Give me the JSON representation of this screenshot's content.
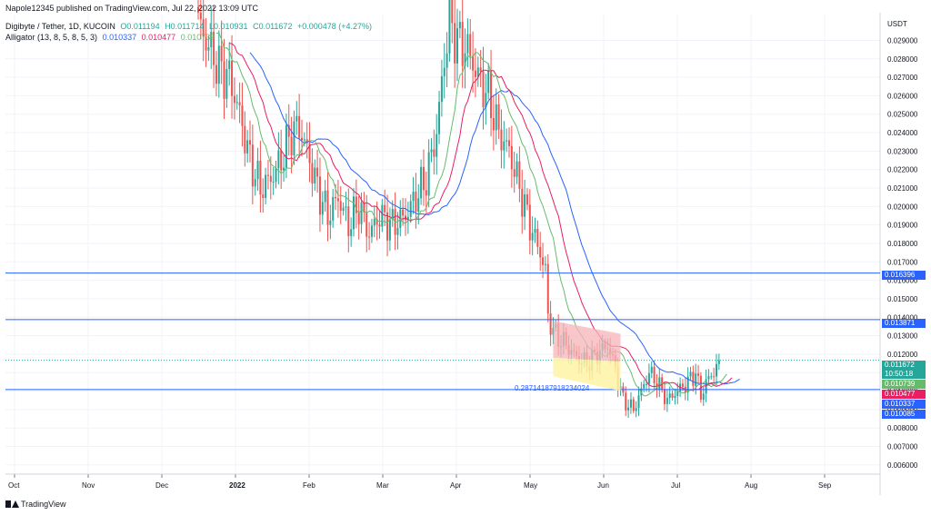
{
  "publish_line": "Napole12345 published on TradingView.com, Jul 22, 2022 13:09 UTC",
  "symbol_line": {
    "name": "Digibyte / Tether, 1D, KUCOIN",
    "open": "O0.011194",
    "high": "H0.011714",
    "low": "L0.010931",
    "close": "C0.011672",
    "change": "+0.000478 (+4.27%)"
  },
  "indicator_line": {
    "name": "Alligator (13, 8, 5, 8, 5, 3)",
    "jaw": "0.010337",
    "teeth": "0.010477",
    "lips": "0.010739"
  },
  "footer": {
    "brand": "TradingView"
  },
  "colors": {
    "up": "#26a69a",
    "down": "#ef5350",
    "jaw": "#2962ff",
    "teeth": "#e91e63",
    "lips": "#66bb6a",
    "hline": "#2962ff",
    "rect_red": "#f7b4b8",
    "rect_yellow": "#fff3a6"
  },
  "price_tags": {
    "h1": "0.016396",
    "h2": "0.013871",
    "last": "0.011672",
    "countdown": "10:50:18",
    "lips": "0.010739",
    "teeth": "0.010477",
    "jaw": "0.010337",
    "h3": "0.010085"
  },
  "annotation": "0.28714187918234024",
  "chart_data": {
    "type": "candlestick",
    "title": "Digibyte / Tether, 1D, KUCOIN",
    "y_unit": "USDT",
    "ylim": [
      0.0055,
      0.0304
    ],
    "y_ticks": [
      "0.029000",
      "0.028000",
      "0.027000",
      "0.026000",
      "0.025000",
      "0.024000",
      "0.023000",
      "0.022000",
      "0.021000",
      "0.020000",
      "0.019000",
      "0.018000",
      "0.017000",
      "0.016000",
      "0.015000",
      "0.014000",
      "0.013000",
      "0.012000",
      "0.011000",
      "0.010000",
      "0.009000",
      "0.008000",
      "0.007000",
      "0.006000"
    ],
    "x_ticks": [
      "Oct",
      "Nov",
      "Dec",
      "2022",
      "Feb",
      "Mar",
      "Apr",
      "May",
      "Jun",
      "Jul",
      "Aug",
      "Sep"
    ],
    "grid": true,
    "horizontal_lines": [
      0.016396,
      0.013871,
      0.010085
    ],
    "close_anchors": [
      [
        0,
        0.03
      ],
      [
        3,
        0.029
      ],
      [
        8,
        0.0275
      ],
      [
        12,
        0.027
      ],
      [
        16,
        0.025
      ],
      [
        20,
        0.0225
      ],
      [
        24,
        0.021
      ],
      [
        28,
        0.0215
      ],
      [
        32,
        0.0225
      ],
      [
        36,
        0.024
      ],
      [
        39,
        0.0243
      ],
      [
        42,
        0.023
      ],
      [
        46,
        0.021
      ],
      [
        50,
        0.0195
      ],
      [
        54,
        0.0205
      ],
      [
        58,
        0.019
      ],
      [
        62,
        0.02
      ],
      [
        66,
        0.0185
      ],
      [
        70,
        0.0195
      ],
      [
        75,
        0.019
      ],
      [
        80,
        0.0195
      ],
      [
        84,
        0.0205
      ],
      [
        88,
        0.0215
      ],
      [
        92,
        0.024
      ],
      [
        95,
        0.028
      ],
      [
        97,
        0.03
      ],
      [
        100,
        0.029
      ],
      [
        104,
        0.0285
      ],
      [
        108,
        0.027
      ],
      [
        112,
        0.026
      ],
      [
        116,
        0.024
      ],
      [
        120,
        0.023
      ],
      [
        124,
        0.021
      ],
      [
        128,
        0.019
      ],
      [
        132,
        0.0175
      ],
      [
        134,
        0.0165
      ],
      [
        135,
        0.014
      ],
      [
        138,
        0.013
      ],
      [
        142,
        0.0125
      ],
      [
        146,
        0.0118
      ],
      [
        150,
        0.0115
      ],
      [
        154,
        0.012
      ],
      [
        158,
        0.0125
      ],
      [
        161,
        0.0112
      ],
      [
        164,
        0.0095
      ],
      [
        168,
        0.009
      ],
      [
        171,
        0.01
      ],
      [
        174,
        0.011
      ],
      [
        177,
        0.0105
      ],
      [
        181,
        0.0095
      ],
      [
        185,
        0.01
      ],
      [
        189,
        0.0105
      ],
      [
        192,
        0.011
      ],
      [
        194,
        0.0097
      ],
      [
        196,
        0.0105
      ],
      [
        198,
        0.0108
      ],
      [
        200,
        0.0114
      ],
      [
        201,
        0.0117
      ]
    ],
    "alligator": {
      "jaw": {
        "period": 13,
        "shift": 8,
        "last": 0.010337
      },
      "teeth": {
        "period": 8,
        "shift": 5,
        "last": 0.010477
      },
      "lips": {
        "period": 5,
        "shift": 3,
        "last": 0.010739
      }
    }
  }
}
